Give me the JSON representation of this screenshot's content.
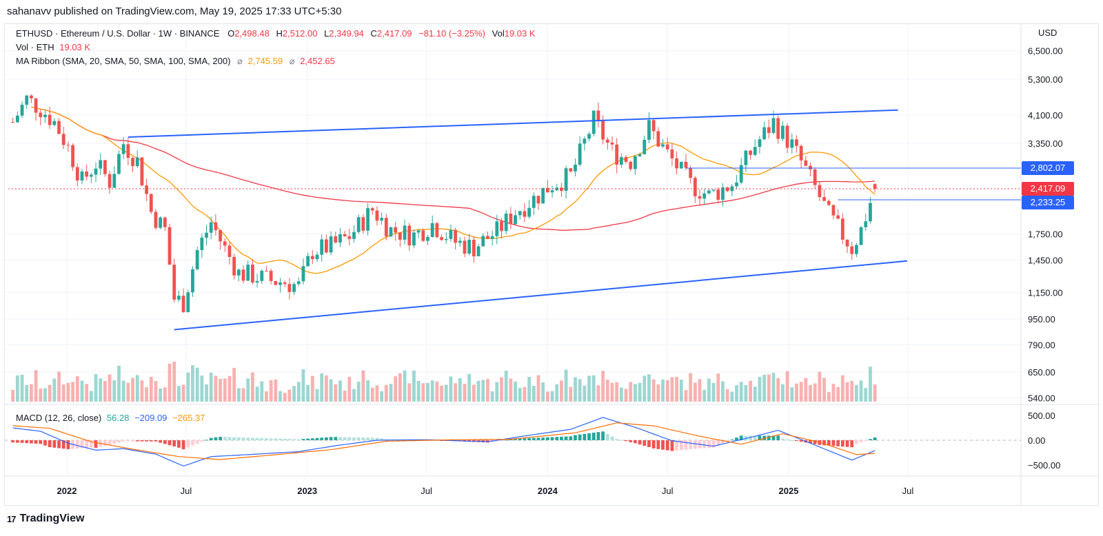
{
  "header": {
    "text": "sahanavv published on TradingView.com, May 19, 2025 17:33 UTC+5:30"
  },
  "legend": {
    "symbol": "ETHUSD · Ethereum / U.S. Dollar · 1W · BINANCE",
    "o_label": "O",
    "o": "2,498.48",
    "h_label": "H",
    "h": "2,512.00",
    "l_label": "L",
    "l": "2,349.94",
    "c_label": "C",
    "c": "2,417.09",
    "change": "−81.10 (−3.25%)",
    "vol_label": "Vol",
    "vol": "19.03 K",
    "vol_eth_label": "Vol · ETH",
    "vol_eth": "19.03 K",
    "ma_label": "MA Ribbon (SMA, 20, SMA, 50, SMA, 100, SMA, 200)",
    "ma_sym": "⌀",
    "ma1": "2,745.59",
    "ma2": "2,452.65",
    "macd_label": "MACD (12, 26, close)",
    "macd_hist": "56.28",
    "macd_line": "−209.09",
    "macd_signal": "−265.37"
  },
  "currency": "USD",
  "footer": {
    "logo_mark": "17",
    "logo_text": "TradingView"
  },
  "colors": {
    "up": "#26a69a",
    "down": "#ef5350",
    "ma20": "#ff9800",
    "ma200": "#f23645",
    "trend": "#2962ff",
    "macd": "#2962ff",
    "signal": "#ff6d00",
    "grid": "#f0f3fa"
  },
  "chart_data": [
    {
      "type": "candlestick",
      "title": "ETHUSD · Ethereum / U.S. Dollar · 1W · BINANCE",
      "y_scale": "log",
      "y_ticks": [
        "6,500.00",
        "5,300.00",
        "4,100.00",
        "3,350.00",
        "1,750.00",
        "1,450.00",
        "1,150.00",
        "950.00",
        "790.00",
        "650.00",
        "540.00"
      ],
      "y_tick_values": [
        6500,
        5300,
        4100,
        3350,
        1750,
        1450,
        1150,
        950,
        790,
        650,
        540
      ],
      "x_ticks": [
        "2022",
        "Jul",
        "2023",
        "Jul",
        "2024",
        "Jul",
        "2025",
        "Jul"
      ],
      "x_tick_dates": [
        "2022-01-01",
        "2022-07-01",
        "2023-01-01",
        "2023-07-01",
        "2024-01-01",
        "2024-07-01",
        "2025-01-01",
        "2025-07-01"
      ],
      "price_labels": [
        {
          "value": "2,802.07",
          "color": "#2962ff"
        },
        {
          "value": "2,417.09",
          "color": "#f23645"
        },
        {
          "value": "2,233.25",
          "color": "#2962ff"
        }
      ],
      "horizontal_levels": [
        {
          "price": 2802.07,
          "from": "2024-07-29",
          "color": "#2962ff"
        },
        {
          "price": 2233.25,
          "from": "2025-03-17",
          "color": "#2962ff"
        },
        {
          "price": 2417.09,
          "from": "2021-10-04",
          "color": "#f23645",
          "style": "dotted"
        }
      ],
      "trendlines": [
        {
          "from": [
            "2022-04-04",
            3500
          ],
          "to": [
            "2025-06-16",
            4250
          ],
          "color": "#2962ff"
        },
        {
          "from": [
            "2022-06-13",
            880
          ],
          "to": [
            "2025-06-30",
            1440
          ],
          "color": "#2962ff"
        }
      ],
      "closes": [
        {
          "d": "2021-10-11",
          "c": 3900
        },
        {
          "d": "2021-11-01",
          "c": 4600
        },
        {
          "d": "2021-11-22",
          "c": 4300
        },
        {
          "d": "2021-12-13",
          "c": 3900
        },
        {
          "d": "2022-01-03",
          "c": 3250
        },
        {
          "d": "2022-01-24",
          "c": 2550
        },
        {
          "d": "2022-02-14",
          "c": 2900
        },
        {
          "d": "2022-03-07",
          "c": 2550
        },
        {
          "d": "2022-03-28",
          "c": 3350
        },
        {
          "d": "2022-04-18",
          "c": 2950
        },
        {
          "d": "2022-05-09",
          "c": 2050
        },
        {
          "d": "2022-05-30",
          "c": 1800
        },
        {
          "d": "2022-06-13",
          "c": 1100
        },
        {
          "d": "2022-06-27",
          "c": 1070
        },
        {
          "d": "2022-07-18",
          "c": 1550
        },
        {
          "d": "2022-08-08",
          "c": 1900
        },
        {
          "d": "2022-08-29",
          "c": 1570
        },
        {
          "d": "2022-09-19",
          "c": 1320
        },
        {
          "d": "2022-10-10",
          "c": 1300
        },
        {
          "d": "2022-11-07",
          "c": 1250
        },
        {
          "d": "2022-11-28",
          "c": 1240
        },
        {
          "d": "2022-12-19",
          "c": 1200
        },
        {
          "d": "2023-01-09",
          "c": 1550
        },
        {
          "d": "2023-02-06",
          "c": 1600
        },
        {
          "d": "2023-03-06",
          "c": 1720
        },
        {
          "d": "2023-04-10",
          "c": 2080
        },
        {
          "d": "2023-05-08",
          "c": 1800
        },
        {
          "d": "2023-06-12",
          "c": 1730
        },
        {
          "d": "2023-07-10",
          "c": 1880
        },
        {
          "d": "2023-08-14",
          "c": 1650
        },
        {
          "d": "2023-09-11",
          "c": 1590
        },
        {
          "d": "2023-10-16",
          "c": 1780
        },
        {
          "d": "2023-11-13",
          "c": 2050
        },
        {
          "d": "2023-12-11",
          "c": 2250
        },
        {
          "d": "2024-01-08",
          "c": 2500
        },
        {
          "d": "2024-02-05",
          "c": 2650
        },
        {
          "d": "2024-03-11",
          "c": 3950
        },
        {
          "d": "2024-04-08",
          "c": 3150
        },
        {
          "d": "2024-05-06",
          "c": 2950
        },
        {
          "d": "2024-06-03",
          "c": 3750
        },
        {
          "d": "2024-07-01",
          "c": 3100
        },
        {
          "d": "2024-08-05",
          "c": 2500
        },
        {
          "d": "2024-09-02",
          "c": 2300
        },
        {
          "d": "2024-10-07",
          "c": 2500
        },
        {
          "d": "2024-11-11",
          "c": 3300
        },
        {
          "d": "2024-12-09",
          "c": 3900
        },
        {
          "d": "2025-01-06",
          "c": 3300
        },
        {
          "d": "2025-02-03",
          "c": 2600
        },
        {
          "d": "2025-03-03",
          "c": 2000
        },
        {
          "d": "2025-04-07",
          "c": 1580
        },
        {
          "d": "2025-04-21",
          "c": 1800
        },
        {
          "d": "2025-05-12",
          "c": 2417.09
        }
      ],
      "ma20_last": 2745.59,
      "ma200_last": 2452.65
    },
    {
      "type": "bar",
      "title": "Vol · ETH",
      "series": [
        {
          "name": "Vol · ETH",
          "last": "19.03 K"
        }
      ]
    },
    {
      "type": "line",
      "title": "MACD (12, 26, close)",
      "y_ticks": [
        "500.00",
        "0.00",
        "−500.00"
      ],
      "y_tick_values": [
        500,
        0,
        -500
      ],
      "series": [
        {
          "name": "Histogram",
          "last": 56.28
        },
        {
          "name": "MACD",
          "last": -209.09
        },
        {
          "name": "Signal",
          "last": -265.37
        }
      ],
      "macd_points": [
        {
          "d": "2021-10-04",
          "v": 260
        },
        {
          "d": "2021-11-22",
          "v": 180
        },
        {
          "d": "2022-01-03",
          "v": -60
        },
        {
          "d": "2022-02-14",
          "v": -200
        },
        {
          "d": "2022-03-28",
          "v": -170
        },
        {
          "d": "2022-05-16",
          "v": -280
        },
        {
          "d": "2022-06-27",
          "v": -520
        },
        {
          "d": "2022-08-08",
          "v": -330
        },
        {
          "d": "2022-10-03",
          "v": -290
        },
        {
          "d": "2022-12-19",
          "v": -230
        },
        {
          "d": "2023-02-13",
          "v": -110
        },
        {
          "d": "2023-04-17",
          "v": 0
        },
        {
          "d": "2023-07-03",
          "v": 10
        },
        {
          "d": "2023-10-02",
          "v": -30
        },
        {
          "d": "2023-12-04",
          "v": 100
        },
        {
          "d": "2024-02-05",
          "v": 220
        },
        {
          "d": "2024-03-25",
          "v": 460
        },
        {
          "d": "2024-05-13",
          "v": 260
        },
        {
          "d": "2024-07-08",
          "v": -10
        },
        {
          "d": "2024-09-09",
          "v": -120
        },
        {
          "d": "2024-11-11",
          "v": 80
        },
        {
          "d": "2024-12-16",
          "v": 200
        },
        {
          "d": "2025-02-03",
          "v": -60
        },
        {
          "d": "2025-04-07",
          "v": -400
        },
        {
          "d": "2025-05-12",
          "v": -209.09
        }
      ],
      "signal_points": [
        {
          "d": "2021-10-04",
          "v": 300
        },
        {
          "d": "2021-12-06",
          "v": 240
        },
        {
          "d": "2022-02-07",
          "v": -30
        },
        {
          "d": "2022-04-11",
          "v": -180
        },
        {
          "d": "2022-06-20",
          "v": -330
        },
        {
          "d": "2022-08-22",
          "v": -390
        },
        {
          "d": "2022-11-07",
          "v": -300
        },
        {
          "d": "2023-02-06",
          "v": -190
        },
        {
          "d": "2023-05-01",
          "v": -20
        },
        {
          "d": "2023-08-14",
          "v": 10
        },
        {
          "d": "2023-11-06",
          "v": 20
        },
        {
          "d": "2024-02-12",
          "v": 150
        },
        {
          "d": "2024-04-15",
          "v": 350
        },
        {
          "d": "2024-06-10",
          "v": 290
        },
        {
          "d": "2024-08-19",
          "v": 80
        },
        {
          "d": "2024-10-21",
          "v": -80
        },
        {
          "d": "2024-12-23",
          "v": 130
        },
        {
          "d": "2025-02-17",
          "v": -40
        },
        {
          "d": "2025-04-14",
          "v": -290
        },
        {
          "d": "2025-05-12",
          "v": -265.37
        }
      ]
    }
  ]
}
